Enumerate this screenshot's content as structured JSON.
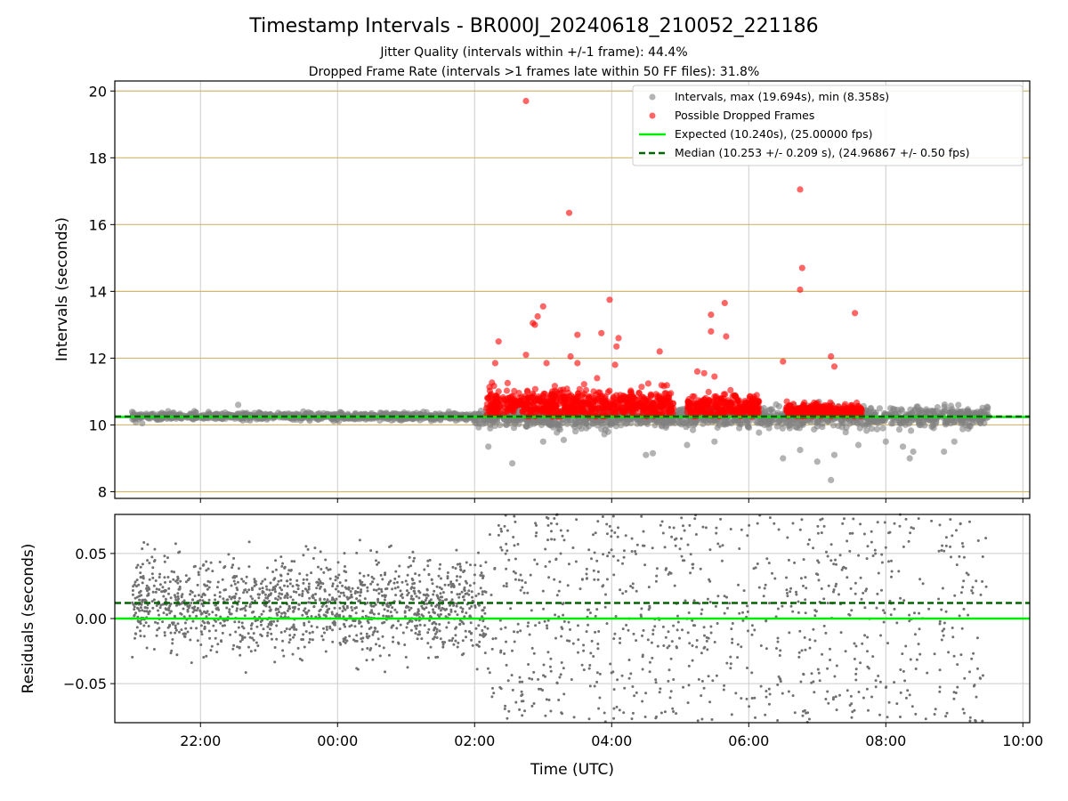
{
  "chart_data": [
    {
      "type": "scatter",
      "title": "Timestamp Intervals - BR000J_20240618_210052_221186",
      "subtitle_lines": [
        "Jitter Quality (intervals within +/-1 frame): 44.4%",
        "Dropped Frame Rate (intervals >1 frames late within 50 FF files): 31.8%"
      ],
      "xlabel": "",
      "ylabel": "Intervals (seconds)",
      "x_unit": "hours since 00:00 UTC",
      "xlim": [
        -3.25,
        10.1
      ],
      "ylim": [
        7.8,
        20.3
      ],
      "yticks": [
        8,
        10,
        12,
        14,
        16,
        18,
        20
      ],
      "ytick_labels": [
        "8",
        "10",
        "12",
        "14",
        "16",
        "18",
        "20"
      ],
      "xticks": [
        -2,
        0,
        2,
        4,
        6,
        8,
        10
      ],
      "grid": true,
      "legend_position": "top-right",
      "colors": {
        "intervals": "#808080",
        "dropped": "#ff0000",
        "expected": "#00ee00",
        "median": "#006400",
        "y_gridline": "#d2b86e",
        "x_gridline": "#cccccc"
      },
      "legend": [
        "Intervals, max (19.694s), min (8.358s)",
        "Possible Dropped Frames",
        "Expected (10.240s), (25.00000 fps)",
        "Median (10.253 +/- 0.209 s), (24.96867 +/- 0.50 fps)"
      ],
      "reference_lines": {
        "expected": 10.24,
        "median": 10.253
      },
      "series": [
        {
          "kind": "intervals",
          "clusters": [
            {
              "x_range": [
                -3.0,
                2.0
              ],
              "center": 10.255,
              "spread": 0.1
            },
            {
              "x_range": [
                2.0,
                3.7
              ],
              "center": 10.2,
              "spread": 0.3
            },
            {
              "x_range": [
                3.7,
                9.5
              ],
              "center": 10.22,
              "spread": 0.3
            }
          ],
          "outliers": [
            {
              "x": 2.2,
              "y": 9.35
            },
            {
              "x": 2.55,
              "y": 8.85
            },
            {
              "x": 3.0,
              "y": 9.5
            },
            {
              "x": 3.3,
              "y": 9.55
            },
            {
              "x": 4.5,
              "y": 9.1
            },
            {
              "x": 4.6,
              "y": 9.15
            },
            {
              "x": 5.1,
              "y": 9.4
            },
            {
              "x": 5.5,
              "y": 9.5
            },
            {
              "x": 6.5,
              "y": 9.0
            },
            {
              "x": 6.75,
              "y": 9.25
            },
            {
              "x": 7.0,
              "y": 8.9
            },
            {
              "x": 7.2,
              "y": 8.35
            },
            {
              "x": 7.25,
              "y": 9.1
            },
            {
              "x": 7.6,
              "y": 9.4
            },
            {
              "x": 8.0,
              "y": 9.5
            },
            {
              "x": 8.25,
              "y": 9.35
            },
            {
              "x": 8.35,
              "y": 9.0
            },
            {
              "x": 8.4,
              "y": 9.2
            },
            {
              "x": 8.85,
              "y": 9.2
            },
            {
              "x": 9.0,
              "y": 9.5
            },
            {
              "x": -0.5,
              "y": 10.4
            },
            {
              "x": -1.45,
              "y": 10.6
            },
            {
              "x": -2.85,
              "y": 10.05
            }
          ]
        },
        {
          "kind": "dropped",
          "clusters": [
            {
              "x_range": [
                2.17,
                4.9
              ],
              "center": 10.6,
              "spread": 0.45
            },
            {
              "x_range": [
                5.1,
                6.15
              ],
              "center": 10.55,
              "spread": 0.35
            },
            {
              "x_range": [
                6.55,
                7.65
              ],
              "center": 10.4,
              "spread": 0.25
            }
          ],
          "high_points": [
            {
              "x": 2.75,
              "y": 19.7
            },
            {
              "x": 3.38,
              "y": 16.35
            },
            {
              "x": 6.75,
              "y": 17.05
            },
            {
              "x": 6.78,
              "y": 14.7
            },
            {
              "x": 6.75,
              "y": 14.05
            },
            {
              "x": 3.97,
              "y": 13.75
            },
            {
              "x": 5.65,
              "y": 13.65
            },
            {
              "x": 7.55,
              "y": 13.35
            },
            {
              "x": 3.0,
              "y": 13.55
            },
            {
              "x": 2.92,
              "y": 13.25
            },
            {
              "x": 5.45,
              "y": 13.3
            },
            {
              "x": 2.85,
              "y": 13.05
            },
            {
              "x": 2.88,
              "y": 13.0
            },
            {
              "x": 3.85,
              "y": 12.75
            },
            {
              "x": 3.5,
              "y": 12.7
            },
            {
              "x": 5.45,
              "y": 12.8
            },
            {
              "x": 5.67,
              "y": 12.65
            },
            {
              "x": 4.1,
              "y": 12.6
            },
            {
              "x": 2.35,
              "y": 12.5
            },
            {
              "x": 4.07,
              "y": 12.35
            },
            {
              "x": 4.7,
              "y": 12.2
            },
            {
              "x": 7.2,
              "y": 12.05
            },
            {
              "x": 2.75,
              "y": 12.1
            },
            {
              "x": 3.4,
              "y": 12.05
            },
            {
              "x": 3.5,
              "y": 11.85
            },
            {
              "x": 6.5,
              "y": 11.9
            },
            {
              "x": 2.3,
              "y": 11.85
            },
            {
              "x": 3.05,
              "y": 11.85
            },
            {
              "x": 4.05,
              "y": 11.8
            },
            {
              "x": 7.25,
              "y": 11.75
            },
            {
              "x": 5.25,
              "y": 11.6
            },
            {
              "x": 5.35,
              "y": 11.55
            },
            {
              "x": 5.5,
              "y": 11.45
            }
          ]
        }
      ]
    },
    {
      "type": "scatter",
      "xlabel": "Time (UTC)",
      "ylabel": "Residuals (seconds)",
      "xlim": [
        -3.25,
        10.1
      ],
      "ylim": [
        -0.08,
        0.08
      ],
      "yticks": [
        -0.05,
        0.0,
        0.05
      ],
      "ytick_labels": [
        "−0.05",
        "0.00",
        "0.05"
      ],
      "xticks": [
        -2,
        0,
        2,
        4,
        6,
        8,
        10
      ],
      "xtick_labels": [
        "22:00",
        "00:00",
        "02:00",
        "04:00",
        "06:00",
        "08:00",
        "10:00"
      ],
      "grid": true,
      "reference_lines": {
        "expected": 0.0,
        "median": 0.012
      },
      "series": [
        {
          "kind": "residuals",
          "clusters": [
            {
              "x_range": [
                -3.0,
                2.17
              ],
              "center": 0.01,
              "spread": 0.035,
              "density": 1400
            },
            {
              "x_range": [
                2.17,
                9.5
              ],
              "center": 0.0,
              "spread": 0.08,
              "density": 900
            }
          ]
        }
      ]
    }
  ]
}
